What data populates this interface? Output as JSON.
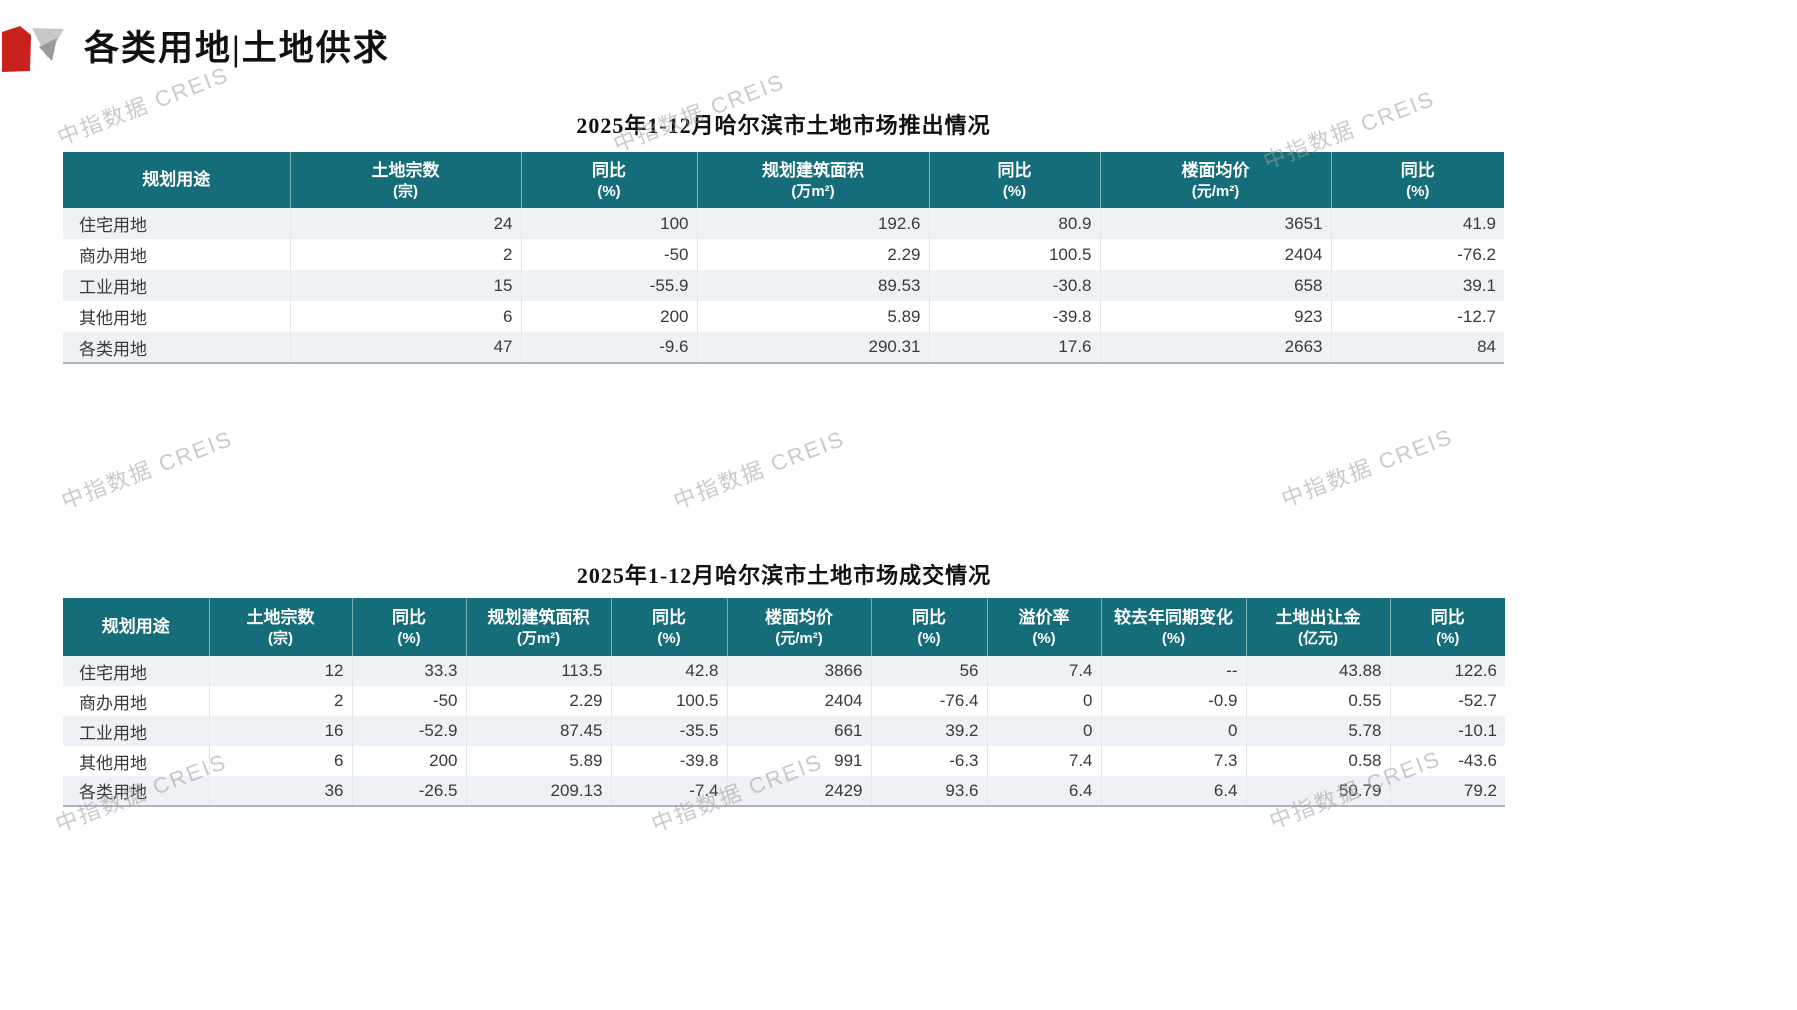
{
  "page": {
    "title": "各类用地|土地供求",
    "watermark": "中指数据 CREIS"
  },
  "colors": {
    "header_teal": "#156d79",
    "row_stripe": "#eef1f5",
    "accent_red": "#c9211e",
    "logo_gray_light": "#c8c8c8",
    "logo_gray_dark": "#9a9a9a"
  },
  "supply_table": {
    "title": "2025年1-12月哈尔滨市土地市场推出情况",
    "columns": [
      {
        "label": "规划用途",
        "unit": ""
      },
      {
        "label": "土地宗数",
        "unit": "(宗)"
      },
      {
        "label": "同比",
        "unit": "(%)"
      },
      {
        "label": "规划建筑面积",
        "unit": "(万m²)"
      },
      {
        "label": "同比",
        "unit": "(%)"
      },
      {
        "label": "楼面均价",
        "unit": "(元/m²)"
      },
      {
        "label": "同比",
        "unit": "(%)"
      }
    ],
    "rows": [
      [
        "住宅用地",
        "24",
        "100",
        "192.6",
        "80.9",
        "3651",
        "41.9"
      ],
      [
        "商办用地",
        "2",
        "-50",
        "2.29",
        "100.5",
        "2404",
        "-76.2"
      ],
      [
        "工业用地",
        "15",
        "-55.9",
        "89.53",
        "-30.8",
        "658",
        "39.1"
      ],
      [
        "其他用地",
        "6",
        "200",
        "5.89",
        "-39.8",
        "923",
        "-12.7"
      ],
      [
        "各类用地",
        "47",
        "-9.6",
        "290.31",
        "17.6",
        "2663",
        "84"
      ]
    ]
  },
  "transaction_table": {
    "title": "2025年1-12月哈尔滨市土地市场成交情况",
    "columns": [
      {
        "label": "规划用途",
        "unit": ""
      },
      {
        "label": "土地宗数",
        "unit": "(宗)"
      },
      {
        "label": "同比",
        "unit": "(%)"
      },
      {
        "label": "规划建筑面积",
        "unit": "(万m²)"
      },
      {
        "label": "同比",
        "unit": "(%)"
      },
      {
        "label": "楼面均价",
        "unit": "(元/m²)"
      },
      {
        "label": "同比",
        "unit": "(%)"
      },
      {
        "label": "溢价率",
        "unit": "(%)"
      },
      {
        "label": "较去年同期变化",
        "unit": "(%)"
      },
      {
        "label": "土地出让金",
        "unit": "(亿元)"
      },
      {
        "label": "同比",
        "unit": "(%)"
      }
    ],
    "rows": [
      [
        "住宅用地",
        "12",
        "33.3",
        "113.5",
        "42.8",
        "3866",
        "56",
        "7.4",
        "--",
        "43.88",
        "122.6"
      ],
      [
        "商办用地",
        "2",
        "-50",
        "2.29",
        "100.5",
        "2404",
        "-76.4",
        "0",
        "-0.9",
        "0.55",
        "-52.7"
      ],
      [
        "工业用地",
        "16",
        "-52.9",
        "87.45",
        "-35.5",
        "661",
        "39.2",
        "0",
        "0",
        "5.78",
        "-10.1"
      ],
      [
        "其他用地",
        "6",
        "200",
        "5.89",
        "-39.8",
        "991",
        "-6.3",
        "7.4",
        "7.3",
        "0.58",
        "-43.6"
      ],
      [
        "各类用地",
        "36",
        "-26.5",
        "209.13",
        "-7.4",
        "2429",
        "93.6",
        "6.4",
        "6.4",
        "50.79",
        "79.2"
      ]
    ]
  }
}
